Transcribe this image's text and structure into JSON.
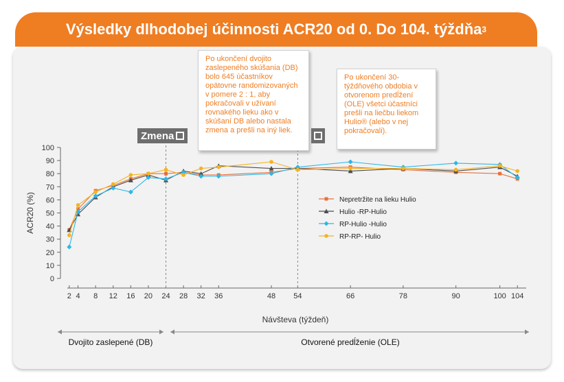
{
  "header": {
    "title": "Výsledky dlhodobej účinnosti ACR20 od 0. Do 104. týždňa",
    "superscript": "3"
  },
  "callouts": {
    "db": "Po ukončení dvojito zaslepeného skúšania (DB) bolo 645 účastníkov opätovne randomizovaných v pomere 2 : 1, aby pokračovali v užívaní rovnakého lieku ako v skúšaní DB alebo nastala zmena a prešli na iný liek.",
    "ole": "Po ukončení 30-týždňového obdobia v otvorenom predĺžení (OLE) všetci účastníci prešli na liečbu liekom Hulio® (alebo v nej pokračovali)."
  },
  "tags": {
    "switch_label": "Zmena"
  },
  "phases": {
    "db_label": "Dvojito zaslepené (DB)",
    "ole_label": "Otvorené predĺženie (OLE)"
  },
  "colors": {
    "accent": "#ef7d22",
    "hulio": "#e8703a",
    "hulio_rp_hulio": "#4d4d4d",
    "rp_hulio_hulio": "#2cb7e8",
    "rp_rp_hulio": "#f5b321"
  },
  "chart_data": {
    "type": "line",
    "xlabel": "Návšteva (týždeň)",
    "ylabel": "ACR20 (%)",
    "ylim": [
      0,
      100
    ],
    "yticks": [
      0,
      10,
      20,
      30,
      40,
      50,
      60,
      70,
      80,
      90,
      100
    ],
    "xticks": [
      2,
      4,
      8,
      12,
      16,
      20,
      24,
      28,
      32,
      36,
      48,
      54,
      66,
      78,
      90,
      100,
      104
    ],
    "x": [
      2,
      4,
      8,
      12,
      16,
      20,
      24,
      28,
      32,
      36,
      48,
      54,
      66,
      78,
      90,
      100,
      104
    ],
    "grid": false,
    "legend_position": "right",
    "reference_lines": [
      24,
      54
    ],
    "series": [
      {
        "name": "Nepretržite na lieku Hulio",
        "marker": "square",
        "color": "#e8703a",
        "values": [
          37,
          53,
          67,
          71,
          76,
          80,
          80,
          81,
          79,
          79,
          81,
          84,
          85,
          83,
          81,
          80,
          76
        ]
      },
      {
        "name": "Hulio -RP-Hulio",
        "marker": "triangle",
        "color": "#4d4d4d",
        "values": [
          37,
          49,
          62,
          70,
          75,
          79,
          75,
          82,
          80,
          86,
          84,
          84,
          82,
          84,
          82,
          85,
          78
        ]
      },
      {
        "name": "RP-Hulio -Hulio",
        "marker": "diamond",
        "color": "#2cb7e8",
        "values": [
          24,
          51,
          63,
          69,
          66,
          77,
          76,
          81,
          78,
          78,
          80,
          85,
          89,
          85,
          88,
          87,
          77
        ]
      },
      {
        "name": "RP-RP- Hulio",
        "marker": "circle",
        "color": "#f5b321",
        "values": [
          33,
          56,
          66,
          72,
          79,
          80,
          83,
          79,
          84,
          85,
          89,
          83,
          84,
          84,
          83,
          86,
          82
        ]
      }
    ]
  }
}
